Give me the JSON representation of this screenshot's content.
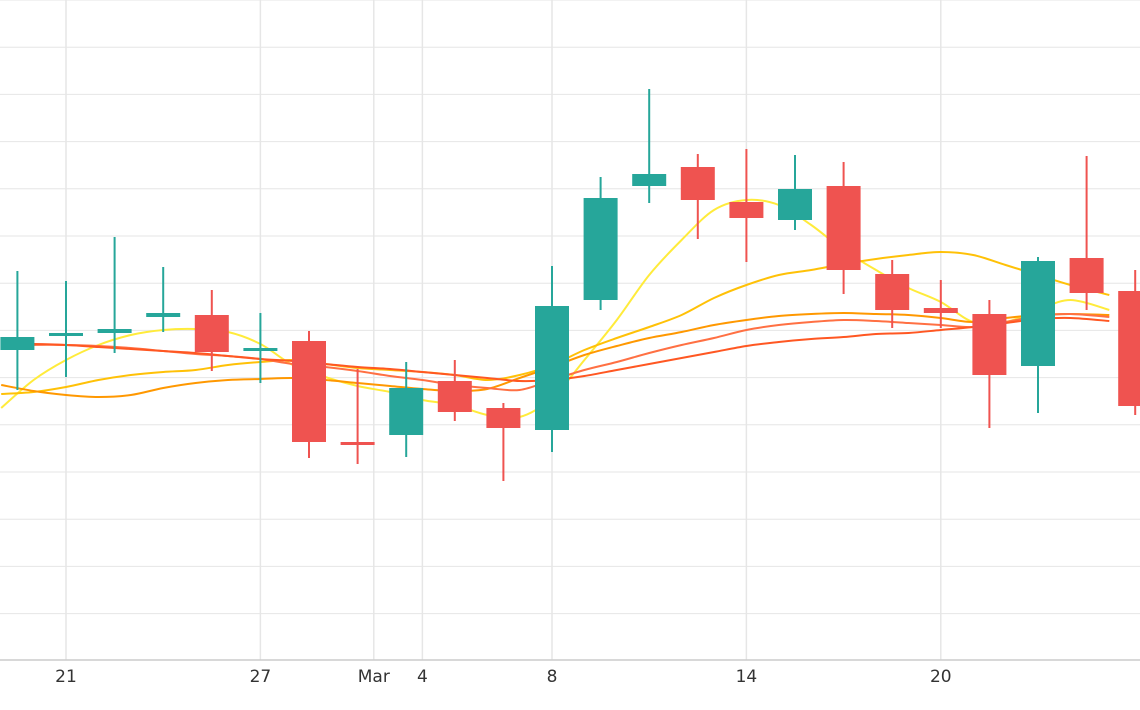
{
  "chart_data": {
    "type": "candlestick",
    "x_ticks": [
      {
        "day": 21,
        "label": "21"
      },
      {
        "day": 27,
        "label": "27"
      },
      {
        "day": 30.5,
        "label": "Mar"
      },
      {
        "day": 32,
        "label": "4"
      },
      {
        "day": 36,
        "label": "8"
      },
      {
        "day": 42,
        "label": "14"
      },
      {
        "day": 48,
        "label": "20"
      }
    ],
    "x_range": [
      19,
      53.2
    ],
    "y_range": [
      0,
      660
    ],
    "grid": true,
    "colors": {
      "up": "#26a69a",
      "down": "#ef5350",
      "grid": "#e6e6e6",
      "text": "#333333"
    },
    "candles": [
      {
        "day": 19.5,
        "open": 310,
        "close": 323,
        "high": 389,
        "low": 270
      },
      {
        "day": 21,
        "open": 324,
        "close": 327,
        "high": 379,
        "low": 283
      },
      {
        "day": 22.5,
        "open": 327,
        "close": 331,
        "high": 423,
        "low": 307
      },
      {
        "day": 24,
        "open": 343,
        "close": 347,
        "high": 393,
        "low": 328
      },
      {
        "day": 25.5,
        "open": 345,
        "close": 308,
        "high": 370,
        "low": 289
      },
      {
        "day": 27,
        "open": 309,
        "close": 312,
        "high": 347,
        "low": 277
      },
      {
        "day": 28.5,
        "open": 319,
        "close": 218,
        "high": 329,
        "low": 202
      },
      {
        "day": 30,
        "open": 218,
        "close": 216,
        "high": 291,
        "low": 196
      },
      {
        "day": 31.5,
        "open": 225,
        "close": 272,
        "high": 298,
        "low": 203
      },
      {
        "day": 33,
        "open": 279,
        "close": 248,
        "high": 300,
        "low": 239
      },
      {
        "day": 34.5,
        "open": 252,
        "close": 232,
        "high": 257,
        "low": 179
      },
      {
        "day": 36,
        "open": 230,
        "close": 354,
        "high": 394,
        "low": 208
      },
      {
        "day": 37.5,
        "open": 360,
        "close": 462,
        "high": 483,
        "low": 350
      },
      {
        "day": 39,
        "open": 474,
        "close": 486,
        "high": 571,
        "low": 457
      },
      {
        "day": 40.5,
        "open": 493,
        "close": 460,
        "high": 506,
        "low": 421
      },
      {
        "day": 42,
        "open": 458,
        "close": 442,
        "high": 511,
        "low": 398
      },
      {
        "day": 43.5,
        "open": 440,
        "close": 471,
        "high": 505,
        "low": 430
      },
      {
        "day": 45,
        "open": 474,
        "close": 390,
        "high": 498,
        "low": 366
      },
      {
        "day": 46.5,
        "open": 386,
        "close": 350,
        "high": 400,
        "low": 332
      },
      {
        "day": 48,
        "open": 352,
        "close": 347,
        "high": 380,
        "low": 332
      },
      {
        "day": 49.5,
        "open": 346,
        "close": 285,
        "high": 360,
        "low": 232
      },
      {
        "day": 51,
        "open": 294,
        "close": 399,
        "high": 403,
        "low": 247
      },
      {
        "day": 52.5,
        "open": 402,
        "close": 367,
        "high": 504,
        "low": 350
      },
      {
        "day": 54,
        "open": 369,
        "close": 254,
        "high": 390,
        "low": 245
      }
    ],
    "moving_averages": [
      {
        "color": "#ffeb3b",
        "points": [
          [
            19,
            252
          ],
          [
            20,
            280
          ],
          [
            21,
            300
          ],
          [
            22,
            315
          ],
          [
            23,
            325
          ],
          [
            24,
            330
          ],
          [
            25,
            331
          ],
          [
            26,
            328
          ],
          [
            27,
            316
          ],
          [
            28,
            295
          ],
          [
            29,
            283
          ],
          [
            30,
            274
          ],
          [
            31,
            268
          ],
          [
            32,
            260
          ],
          [
            33,
            255
          ],
          [
            34,
            245
          ],
          [
            35,
            243
          ],
          [
            36,
            262
          ],
          [
            37,
            300
          ],
          [
            38,
            340
          ],
          [
            39,
            385
          ],
          [
            40,
            420
          ],
          [
            41,
            450
          ],
          [
            42,
            460
          ],
          [
            43,
            455
          ],
          [
            44,
            435
          ],
          [
            45,
            410
          ],
          [
            46,
            390
          ],
          [
            47,
            372
          ],
          [
            48,
            358
          ],
          [
            49,
            338
          ],
          [
            50,
            338
          ],
          [
            51,
            350
          ],
          [
            52,
            360
          ],
          [
            53.2,
            350
          ]
        ]
      },
      {
        "color": "#ffc107",
        "points": [
          [
            19,
            266
          ],
          [
            20,
            268
          ],
          [
            21,
            273
          ],
          [
            22,
            280
          ],
          [
            23,
            285
          ],
          [
            24,
            288
          ],
          [
            25,
            290
          ],
          [
            26,
            295
          ],
          [
            27,
            298
          ],
          [
            28,
            300
          ],
          [
            29,
            296
          ],
          [
            30,
            292
          ],
          [
            31,
            290
          ],
          [
            32,
            288
          ],
          [
            33,
            285
          ],
          [
            34,
            280
          ],
          [
            35,
            285
          ],
          [
            36,
            295
          ],
          [
            37,
            310
          ],
          [
            38,
            322
          ],
          [
            39,
            333
          ],
          [
            40,
            345
          ],
          [
            41,
            362
          ],
          [
            42,
            375
          ],
          [
            43,
            385
          ],
          [
            44,
            390
          ],
          [
            45,
            396
          ],
          [
            46,
            401
          ],
          [
            47,
            405
          ],
          [
            48,
            408
          ],
          [
            49,
            405
          ],
          [
            50,
            395
          ],
          [
            51,
            385
          ],
          [
            52,
            375
          ],
          [
            53.2,
            365
          ]
        ]
      },
      {
        "color": "#ff9800",
        "points": [
          [
            19,
            275
          ],
          [
            20,
            269
          ],
          [
            21,
            265
          ],
          [
            22,
            263
          ],
          [
            23,
            265
          ],
          [
            24,
            272
          ],
          [
            25,
            277
          ],
          [
            26,
            280
          ],
          [
            27,
            281
          ],
          [
            28,
            282
          ],
          [
            29,
            280
          ],
          [
            30,
            277
          ],
          [
            31,
            274
          ],
          [
            32,
            271
          ],
          [
            33,
            269
          ],
          [
            34,
            271
          ],
          [
            35,
            282
          ],
          [
            36,
            293
          ],
          [
            37,
            305
          ],
          [
            38,
            314
          ],
          [
            39,
            322
          ],
          [
            40,
            328
          ],
          [
            41,
            335
          ],
          [
            42,
            340
          ],
          [
            43,
            344
          ],
          [
            44,
            346
          ],
          [
            45,
            347
          ],
          [
            46,
            346
          ],
          [
            47,
            345
          ],
          [
            48,
            342
          ],
          [
            49,
            338
          ],
          [
            50,
            342
          ],
          [
            51,
            345
          ],
          [
            52,
            346
          ],
          [
            53.2,
            345
          ]
        ]
      },
      {
        "color": "#ff7043",
        "points": [
          [
            19,
            312
          ],
          [
            20,
            315
          ],
          [
            21,
            315
          ],
          [
            22,
            314
          ],
          [
            23,
            312
          ],
          [
            24,
            309
          ],
          [
            25,
            306
          ],
          [
            26,
            304
          ],
          [
            27,
            301
          ],
          [
            28,
            296
          ],
          [
            29,
            293
          ],
          [
            30,
            289
          ],
          [
            31,
            284
          ],
          [
            32,
            280
          ],
          [
            33,
            275
          ],
          [
            34,
            272
          ],
          [
            35,
            270
          ],
          [
            36,
            280
          ],
          [
            37,
            290
          ],
          [
            38,
            298
          ],
          [
            39,
            307
          ],
          [
            40,
            315
          ],
          [
            41,
            322
          ],
          [
            42,
            330
          ],
          [
            43,
            335
          ],
          [
            44,
            338
          ],
          [
            45,
            340
          ],
          [
            46,
            339
          ],
          [
            47,
            337
          ],
          [
            48,
            335
          ],
          [
            49,
            333
          ],
          [
            50,
            338
          ],
          [
            51,
            344
          ],
          [
            52,
            346
          ],
          [
            53.2,
            343
          ]
        ]
      },
      {
        "color": "#ff5722",
        "points": [
          [
            19,
            316
          ],
          [
            20,
            316
          ],
          [
            21,
            315
          ],
          [
            22,
            313
          ],
          [
            23,
            311
          ],
          [
            24,
            309
          ],
          [
            25,
            307
          ],
          [
            26,
            304
          ],
          [
            27,
            301
          ],
          [
            28,
            299
          ],
          [
            29,
            296
          ],
          [
            30,
            293
          ],
          [
            31,
            291
          ],
          [
            32,
            288
          ],
          [
            33,
            285
          ],
          [
            34,
            282
          ],
          [
            35,
            279
          ],
          [
            36,
            280
          ],
          [
            37,
            284
          ],
          [
            38,
            290
          ],
          [
            39,
            296
          ],
          [
            40,
            302
          ],
          [
            41,
            308
          ],
          [
            42,
            314
          ],
          [
            43,
            318
          ],
          [
            44,
            321
          ],
          [
            45,
            323
          ],
          [
            46,
            326
          ],
          [
            47,
            327
          ],
          [
            48,
            330
          ],
          [
            49,
            333
          ],
          [
            50,
            337
          ],
          [
            51,
            341
          ],
          [
            52,
            342
          ],
          [
            53.2,
            339
          ]
        ]
      }
    ]
  }
}
